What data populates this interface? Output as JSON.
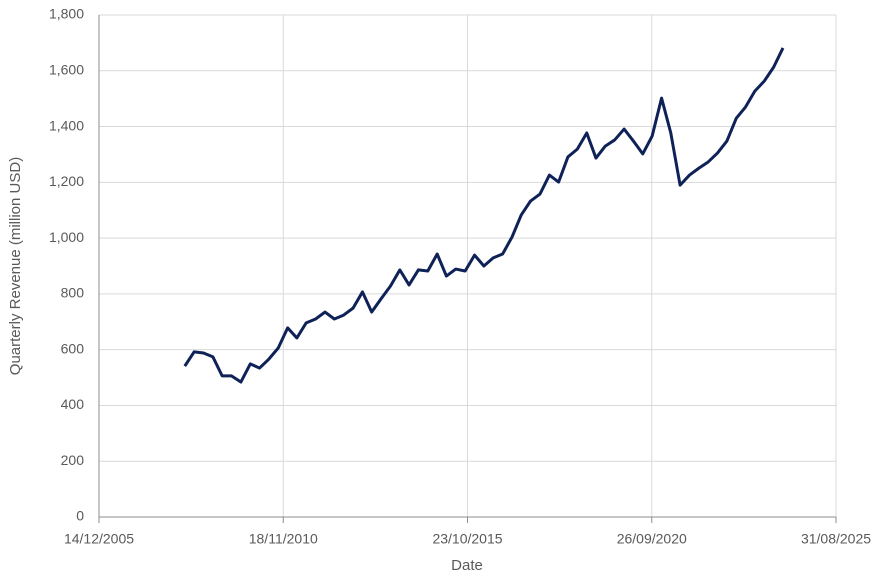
{
  "chart_data": {
    "type": "line",
    "x_label": "Date",
    "y_label": "Quarterly Revenue (million USD)",
    "x": [
      "31/03/2008",
      "30/06/2008",
      "30/09/2008",
      "31/12/2008",
      "31/03/2009",
      "30/06/2009",
      "30/09/2009",
      "31/12/2009",
      "31/03/2010",
      "30/06/2010",
      "30/09/2010",
      "31/12/2010",
      "31/03/2011",
      "30/06/2011",
      "30/09/2011",
      "31/12/2011",
      "31/03/2012",
      "30/06/2012",
      "30/09/2012",
      "31/12/2012",
      "31/03/2013",
      "30/06/2013",
      "30/09/2013",
      "31/12/2013",
      "31/03/2014",
      "30/06/2014",
      "30/09/2014",
      "31/12/2014",
      "31/03/2015",
      "30/06/2015",
      "30/09/2015",
      "31/12/2015",
      "31/03/2016",
      "30/06/2016",
      "30/09/2016",
      "31/12/2016",
      "31/03/2017",
      "30/06/2017",
      "30/09/2017",
      "31/12/2017",
      "31/03/2018",
      "30/06/2018",
      "30/09/2018",
      "31/12/2018",
      "31/03/2019",
      "30/06/2019",
      "30/09/2019",
      "31/12/2019",
      "31/03/2020",
      "30/06/2020",
      "30/09/2020",
      "31/12/2020",
      "31/03/2021",
      "30/06/2021",
      "30/09/2021",
      "31/12/2021",
      "31/03/2022",
      "30/06/2022",
      "30/09/2022",
      "31/12/2022",
      "31/03/2023",
      "30/06/2023",
      "30/09/2023",
      "31/12/2023",
      "31/03/2024"
    ],
    "series": [
      {
        "name": "Quarterly Revenue",
        "color": "#0e2257",
        "values": [
          541,
          592,
          588,
          574,
          506,
          506,
          484,
          549,
          534,
          566,
          606,
          678,
          642,
          696,
          710,
          735,
          710,
          724,
          749,
          807,
          735,
          782,
          828,
          886,
          832,
          886,
          882,
          943,
          864,
          889,
          882,
          939,
          900,
          929,
          943,
          1004,
          1083,
          1133,
          1158,
          1226,
          1201,
          1291,
          1319,
          1377,
          1287,
          1330,
          1352,
          1391,
          1348,
          1302,
          1366,
          1502,
          1377,
          1190,
          1226,
          1251,
          1273,
          1305,
          1348,
          1430,
          1470,
          1527,
          1563,
          1613,
          1682
        ]
      }
    ],
    "xlim": [
      "14/12/2005",
      "31/08/2025"
    ],
    "xticks": [
      "14/12/2005",
      "18/11/2010",
      "23/10/2015",
      "26/09/2020",
      "31/08/2025"
    ],
    "ylim": [
      0,
      1800
    ],
    "yticks": [
      0,
      200,
      400,
      600,
      800,
      {
        "value": 1000,
        "label": "1,000"
      },
      {
        "value": 1200,
        "label": "1,200"
      },
      {
        "value": 1400,
        "label": "1,400"
      },
      {
        "value": 1600,
        "label": "1,600"
      },
      {
        "value": 1800,
        "label": "1,800"
      }
    ],
    "grid": true
  }
}
